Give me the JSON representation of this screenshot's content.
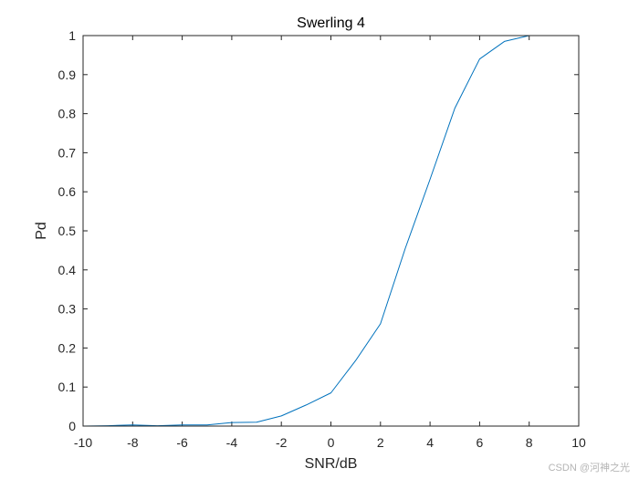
{
  "chart_data": {
    "type": "line",
    "title": "Swerling 4",
    "xlabel": "SNR/dB",
    "ylabel": "Pd",
    "xlim": [
      -10,
      10
    ],
    "ylim": [
      0,
      1
    ],
    "grid": false,
    "x_ticks": [
      -10,
      -8,
      -6,
      -4,
      -2,
      0,
      2,
      4,
      6,
      8,
      10
    ],
    "y_ticks": [
      0,
      0.1,
      0.2,
      0.3,
      0.4,
      0.5,
      0.6,
      0.7,
      0.8,
      0.9,
      1
    ],
    "x_tick_labels": [
      "-10",
      "-8",
      "-6",
      "-4",
      "-2",
      "0",
      "2",
      "4",
      "6",
      "8",
      "10"
    ],
    "y_tick_labels": [
      "0",
      "0.1",
      "0.2",
      "0.3",
      "0.4",
      "0.5",
      "0.6",
      "0.7",
      "0.8",
      "0.9",
      "1"
    ],
    "series": [
      {
        "color": "#0072BD",
        "x": [
          -10,
          -9,
          -8,
          -7,
          -6,
          -5,
          -4,
          -3,
          -2,
          -1,
          0,
          1,
          2,
          3,
          4,
          5,
          6,
          7,
          8,
          9,
          10
        ],
        "y": [
          0,
          0.001,
          0.003,
          0.001,
          0.003,
          0.003,
          0.009,
          0.01,
          0.026,
          0.054,
          0.085,
          0.168,
          0.262,
          0.455,
          0.632,
          0.814,
          0.94,
          0.985,
          1.0,
          1.0,
          1.0
        ]
      }
    ]
  },
  "watermark": "CSDN @河神之光"
}
